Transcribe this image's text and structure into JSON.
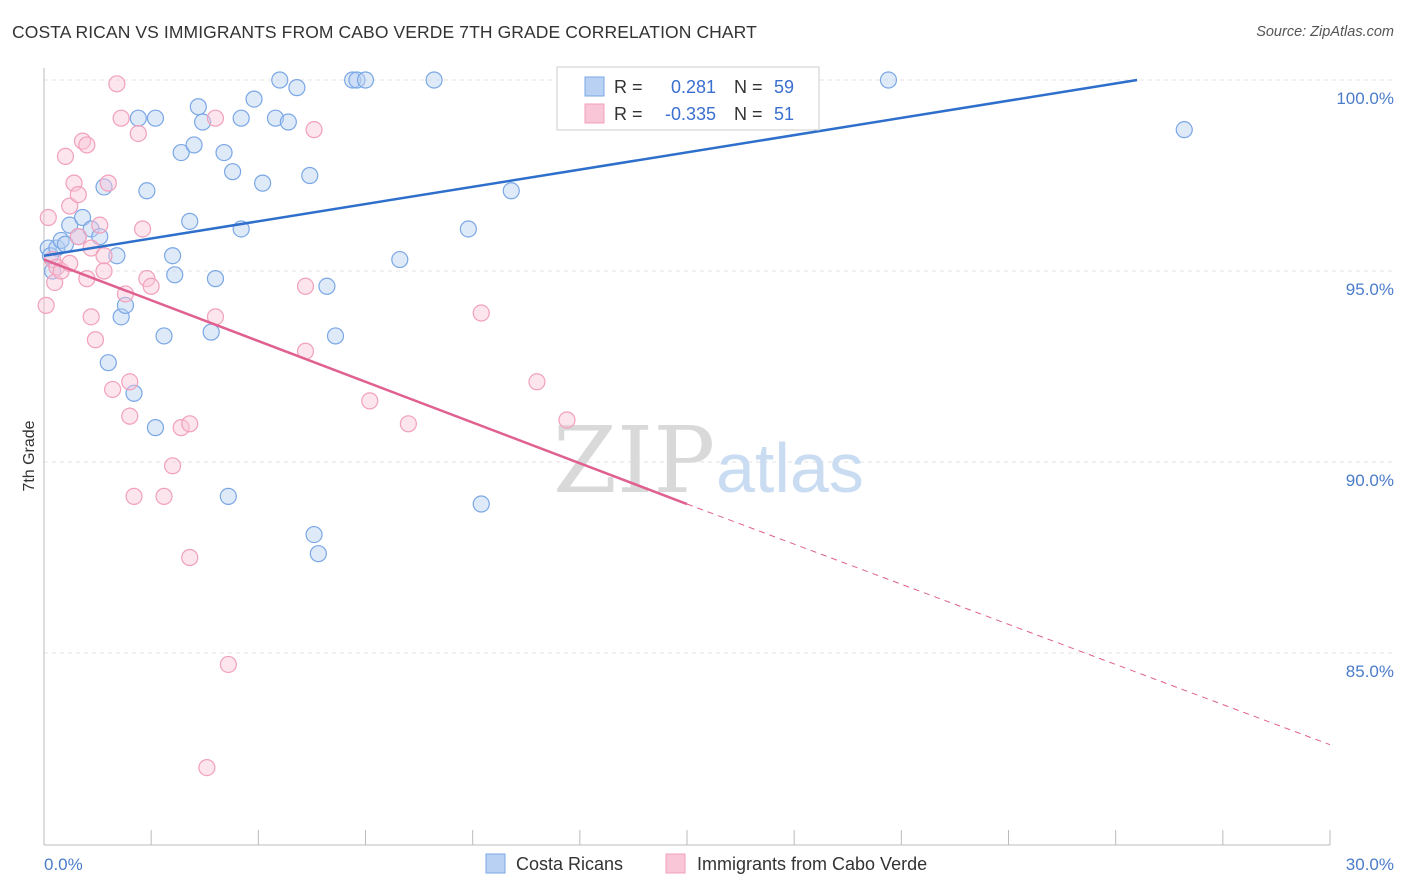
{
  "title": "COSTA RICAN VS IMMIGRANTS FROM CABO VERDE 7TH GRADE CORRELATION CHART",
  "source": "Source: ZipAtlas.com",
  "watermark": {
    "zip": "ZIP",
    "atlas": "atlas"
  },
  "chart_data": {
    "type": "scatter",
    "title": "COSTA RICAN VS IMMIGRANTS FROM CABO VERDE 7TH GRADE CORRELATION CHART",
    "xlabel": "",
    "ylabel": "7th Grade",
    "xlim": [
      0,
      30
    ],
    "ylim": [
      80.5,
      101
    ],
    "x_tick_labels": [
      "0.0%",
      "30.0%"
    ],
    "y_ticks": [
      85,
      90,
      95,
      100
    ],
    "y_tick_labels": [
      "85.0%",
      "90.0%",
      "95.0%",
      "100.0%"
    ],
    "grid": true,
    "legend_top": {
      "r_label": "R =",
      "n_label": "N =",
      "entries": [
        {
          "r": "0.281",
          "n": "59"
        },
        {
          "r": "-0.335",
          "n": "51"
        }
      ]
    },
    "series": [
      {
        "name": "Costa Ricans",
        "color": "#7aa7e6",
        "line_color": "#2e6fcc",
        "trend": {
          "x": [
            0,
            25.5
          ],
          "y": [
            95.4,
            100.0
          ]
        },
        "points": [
          {
            "x": 0.1,
            "y": 95.6
          },
          {
            "x": 0.15,
            "y": 95.4
          },
          {
            "x": 0.2,
            "y": 95.0
          },
          {
            "x": 0.3,
            "y": 95.6
          },
          {
            "x": 0.4,
            "y": 95.8
          },
          {
            "x": 0.5,
            "y": 95.7
          },
          {
            "x": 0.6,
            "y": 96.2
          },
          {
            "x": 0.8,
            "y": 95.9
          },
          {
            "x": 0.9,
            "y": 96.4
          },
          {
            "x": 1.1,
            "y": 96.1
          },
          {
            "x": 1.3,
            "y": 95.9
          },
          {
            "x": 1.4,
            "y": 97.2
          },
          {
            "x": 1.5,
            "y": 92.6
          },
          {
            "x": 1.7,
            "y": 95.4
          },
          {
            "x": 1.8,
            "y": 93.8
          },
          {
            "x": 1.9,
            "y": 94.1
          },
          {
            "x": 2.1,
            "y": 91.8
          },
          {
            "x": 2.2,
            "y": 99.0
          },
          {
            "x": 2.4,
            "y": 97.1
          },
          {
            "x": 2.6,
            "y": 99.0
          },
          {
            "x": 2.6,
            "y": 90.9
          },
          {
            "x": 2.8,
            "y": 93.3
          },
          {
            "x": 3.0,
            "y": 95.4
          },
          {
            "x": 3.05,
            "y": 94.9
          },
          {
            "x": 3.2,
            "y": 98.1
          },
          {
            "x": 3.4,
            "y": 96.3
          },
          {
            "x": 3.5,
            "y": 98.3
          },
          {
            "x": 3.6,
            "y": 99.3
          },
          {
            "x": 3.7,
            "y": 98.9
          },
          {
            "x": 3.9,
            "y": 93.4
          },
          {
            "x": 4.0,
            "y": 94.8
          },
          {
            "x": 4.2,
            "y": 98.1
          },
          {
            "x": 4.3,
            "y": 89.1
          },
          {
            "x": 4.4,
            "y": 97.6
          },
          {
            "x": 4.6,
            "y": 96.1
          },
          {
            "x": 4.6,
            "y": 99.0
          },
          {
            "x": 4.9,
            "y": 99.5
          },
          {
            "x": 5.1,
            "y": 97.3
          },
          {
            "x": 5.4,
            "y": 99.0
          },
          {
            "x": 5.5,
            "y": 100.0
          },
          {
            "x": 5.7,
            "y": 98.9
          },
          {
            "x": 5.9,
            "y": 99.8
          },
          {
            "x": 6.2,
            "y": 97.5
          },
          {
            "x": 6.3,
            "y": 88.1
          },
          {
            "x": 6.4,
            "y": 87.6
          },
          {
            "x": 6.6,
            "y": 94.6
          },
          {
            "x": 6.8,
            "y": 93.3
          },
          {
            "x": 7.2,
            "y": 100.0
          },
          {
            "x": 7.3,
            "y": 100.0
          },
          {
            "x": 7.5,
            "y": 100.0
          },
          {
            "x": 8.3,
            "y": 95.3
          },
          {
            "x": 9.1,
            "y": 100.0
          },
          {
            "x": 9.9,
            "y": 96.1
          },
          {
            "x": 10.2,
            "y": 88.9
          },
          {
            "x": 10.9,
            "y": 97.1
          },
          {
            "x": 12.3,
            "y": 100.0
          },
          {
            "x": 14.8,
            "y": 100.0
          },
          {
            "x": 19.7,
            "y": 100.0
          },
          {
            "x": 26.6,
            "y": 98.7
          }
        ]
      },
      {
        "name": "Immigrants from Cabo Verde",
        "color": "#f2a0bb",
        "line_color": "#e06090",
        "trend": {
          "x": [
            0,
            15
          ],
          "y": [
            95.3,
            88.9
          ]
        },
        "trend_dashed": {
          "x": [
            15,
            30
          ],
          "y": [
            88.9,
            82.6
          ]
        },
        "points": [
          {
            "x": 0.05,
            "y": 94.1
          },
          {
            "x": 0.1,
            "y": 96.4
          },
          {
            "x": 0.2,
            "y": 95.3
          },
          {
            "x": 0.25,
            "y": 94.7
          },
          {
            "x": 0.3,
            "y": 95.1
          },
          {
            "x": 0.4,
            "y": 95.0
          },
          {
            "x": 0.5,
            "y": 98.0
          },
          {
            "x": 0.6,
            "y": 96.7
          },
          {
            "x": 0.6,
            "y": 95.2
          },
          {
            "x": 0.7,
            "y": 97.3
          },
          {
            "x": 0.8,
            "y": 97.0
          },
          {
            "x": 0.8,
            "y": 95.9
          },
          {
            "x": 0.9,
            "y": 98.4
          },
          {
            "x": 1.0,
            "y": 98.3
          },
          {
            "x": 1.0,
            "y": 94.8
          },
          {
            "x": 1.1,
            "y": 95.6
          },
          {
            "x": 1.1,
            "y": 93.8
          },
          {
            "x": 1.2,
            "y": 93.2
          },
          {
            "x": 1.3,
            "y": 96.2
          },
          {
            "x": 1.4,
            "y": 95.4
          },
          {
            "x": 1.4,
            "y": 95.0
          },
          {
            "x": 1.5,
            "y": 97.3
          },
          {
            "x": 1.6,
            "y": 91.9
          },
          {
            "x": 1.7,
            "y": 99.9
          },
          {
            "x": 1.8,
            "y": 99.0
          },
          {
            "x": 1.9,
            "y": 94.4
          },
          {
            "x": 2.0,
            "y": 92.1
          },
          {
            "x": 2.0,
            "y": 91.2
          },
          {
            "x": 2.1,
            "y": 89.1
          },
          {
            "x": 2.2,
            "y": 98.6
          },
          {
            "x": 2.3,
            "y": 96.1
          },
          {
            "x": 2.4,
            "y": 94.8
          },
          {
            "x": 2.5,
            "y": 94.6
          },
          {
            "x": 2.8,
            "y": 89.1
          },
          {
            "x": 3.0,
            "y": 89.9
          },
          {
            "x": 3.2,
            "y": 90.9
          },
          {
            "x": 3.4,
            "y": 87.5
          },
          {
            "x": 3.4,
            "y": 91.0
          },
          {
            "x": 3.8,
            "y": 82.0
          },
          {
            "x": 4.0,
            "y": 93.8
          },
          {
            "x": 4.0,
            "y": 99.0
          },
          {
            "x": 4.3,
            "y": 84.7
          },
          {
            "x": 6.1,
            "y": 94.6
          },
          {
            "x": 6.1,
            "y": 92.9
          },
          {
            "x": 6.3,
            "y": 98.7
          },
          {
            "x": 7.6,
            "y": 91.6
          },
          {
            "x": 8.5,
            "y": 91.0
          },
          {
            "x": 10.2,
            "y": 93.9
          },
          {
            "x": 11.5,
            "y": 92.1
          },
          {
            "x": 12.2,
            "y": 91.1
          },
          {
            "x": 13.8,
            "y": 100.0
          }
        ]
      }
    ]
  }
}
